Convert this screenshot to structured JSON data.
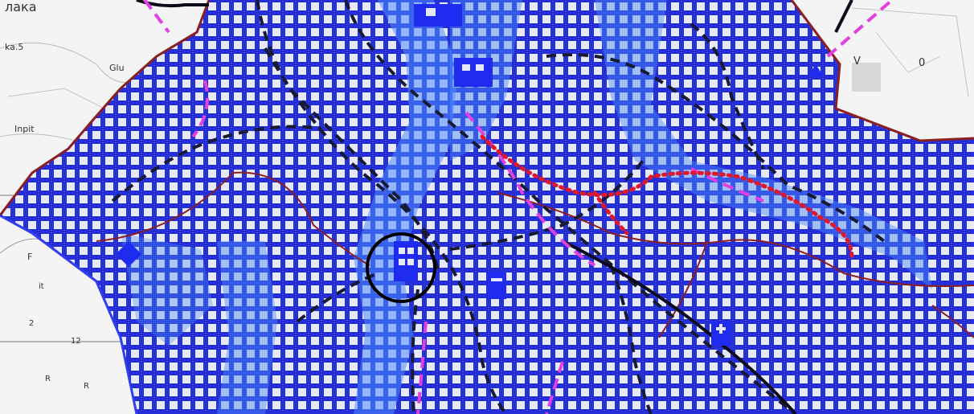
{
  "map": {
    "labels": {
      "top_left": "лака",
      "edge_left_1": "ka.5",
      "edge_left_2": "Glu",
      "edge_left_3": "Inpit",
      "edge_left_4": "F",
      "edge_left_5": "it",
      "edge_left_6": "2",
      "edge_left_7": "12",
      "edge_left_8": "R",
      "edge_left_9": "R",
      "right_v": "V",
      "right_o": "0"
    },
    "colors": {
      "background": "#f4f4f4",
      "zone_fill": "#2f3df0",
      "grid_line": "#2530d8",
      "cell_light": "#dfe4fb",
      "water_highlight": "#4e8cff",
      "district_border": "#8b1f1f",
      "road_dashed": "#171a33",
      "magenta_path": "#e23fe0",
      "red_dots": "#e0182b",
      "circle_marker": "#000000"
    },
    "icons": [
      "building-icon",
      "station-icon",
      "diamond-marker-icon",
      "hospital-icon",
      "center-circle-icon"
    ]
  }
}
